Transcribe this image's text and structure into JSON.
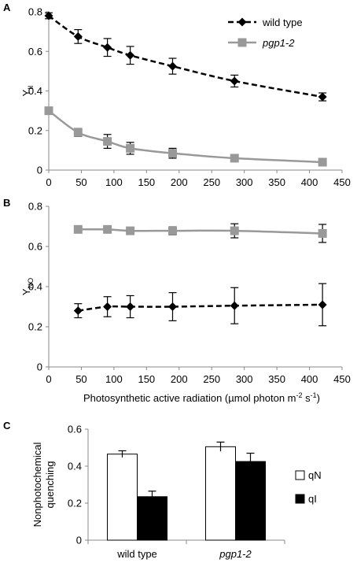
{
  "chart_data": [
    {
      "panel": "A",
      "type": "line",
      "ylabel": "Y",
      "ylabel_sub": "II",
      "xlim": [
        0,
        450
      ],
      "ylim": [
        0,
        0.8
      ],
      "xticks": [
        0,
        50,
        100,
        150,
        200,
        250,
        300,
        350,
        400,
        450
      ],
      "yticks": [
        0,
        0.2,
        0.4,
        0.6,
        0.8
      ],
      "legend_position": "top-right",
      "series": [
        {
          "name": "wild type",
          "style": "dashed",
          "marker": "diamond",
          "color": "#000000",
          "x": [
            0,
            45,
            90,
            125,
            190,
            285,
            420
          ],
          "y": [
            0.78,
            0.675,
            0.62,
            0.58,
            0.525,
            0.45,
            0.37
          ],
          "err": [
            0.015,
            0.035,
            0.045,
            0.045,
            0.04,
            0.03,
            0.02
          ]
        },
        {
          "name": "pgp1-2",
          "style": "solid",
          "marker": "square",
          "color": "#999999",
          "x": [
            0,
            45,
            90,
            125,
            190,
            285,
            420
          ],
          "y": [
            0.3,
            0.19,
            0.145,
            0.11,
            0.085,
            0.06,
            0.04
          ],
          "err": [
            0.01,
            0.02,
            0.035,
            0.03,
            0.025,
            0.01,
            0.01
          ]
        }
      ]
    },
    {
      "panel": "B",
      "type": "line",
      "ylabel": "Y",
      "ylabel_sub": "NO",
      "xlabel": "Photosynthetic active radiation (µmol photon m",
      "xlabel_sup1": "-2",
      "xlabel_mid": " s",
      "xlabel_sup2": "-1",
      "xlabel_end": ")",
      "xlim": [
        0,
        450
      ],
      "ylim": [
        0,
        0.8
      ],
      "xticks": [
        0,
        50,
        100,
        150,
        200,
        250,
        300,
        350,
        400,
        450
      ],
      "yticks": [
        0,
        0.2,
        0.4,
        0.6,
        0.8
      ],
      "series": [
        {
          "name": "wild type",
          "style": "dashed",
          "marker": "diamond",
          "color": "#000000",
          "x": [
            45,
            90,
            125,
            190,
            285,
            420
          ],
          "y": [
            0.28,
            0.3,
            0.3,
            0.3,
            0.305,
            0.31
          ],
          "err": [
            0.035,
            0.05,
            0.055,
            0.07,
            0.09,
            0.105
          ]
        },
        {
          "name": "pgp1-2",
          "style": "solid",
          "marker": "square",
          "color": "#999999",
          "x": [
            45,
            90,
            125,
            190,
            285,
            420
          ],
          "y": [
            0.685,
            0.685,
            0.678,
            0.678,
            0.678,
            0.665
          ],
          "err": [
            0.005,
            0.005,
            0.01,
            0.02,
            0.035,
            0.045
          ]
        }
      ]
    },
    {
      "panel": "C",
      "type": "bar",
      "ylabel": "Nonphotochemical quenching",
      "ylabel_lines": [
        "Nonphotochemical",
        "quenching"
      ],
      "ylim": [
        0,
        0.6
      ],
      "yticks": [
        0,
        0.2,
        0.4,
        0.6
      ],
      "categories": [
        "wild type",
        "pgp1-2"
      ],
      "category_italic": [
        false,
        true
      ],
      "legend_position": "right",
      "series": [
        {
          "name": "qN",
          "fill": "#ffffff",
          "values": [
            0.465,
            0.505
          ],
          "err": [
            0.018,
            0.025
          ]
        },
        {
          "name": "qI",
          "fill": "#000000",
          "values": [
            0.235,
            0.425
          ],
          "err": [
            0.03,
            0.045
          ]
        }
      ]
    }
  ]
}
